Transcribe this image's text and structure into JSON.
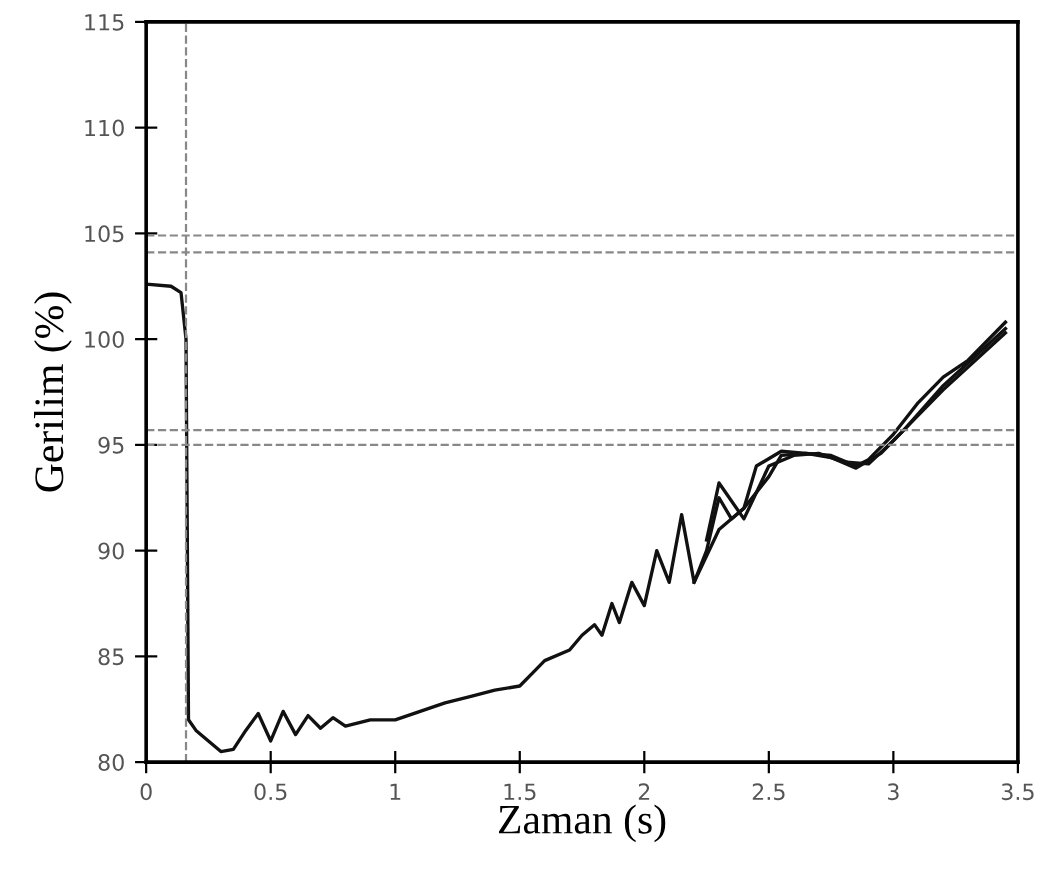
{
  "chart_data": {
    "type": "line",
    "xlabel": "Zaman (s)",
    "ylabel": "Gerilim (%)",
    "xlim": [
      0,
      3.5
    ],
    "ylim": [
      80,
      115
    ],
    "xticks": [
      0,
      0.5,
      1,
      1.5,
      2,
      2.5,
      3,
      3.5
    ],
    "yticks": [
      80,
      85,
      90,
      95,
      100,
      105,
      110,
      115
    ],
    "grid": false,
    "marker": "none",
    "line_style": "solid",
    "series": [
      {
        "color": "#111111",
        "x": [
          0,
          0.1,
          0.14,
          0.16,
          0.17,
          0.2,
          0.25,
          0.3,
          0.35,
          0.4,
          0.45,
          0.5,
          0.55,
          0.6,
          0.65,
          0.7,
          0.75,
          0.8,
          0.9,
          1.0,
          1.1,
          1.2,
          1.3,
          1.4,
          1.5,
          1.55,
          1.6,
          1.7,
          1.75,
          1.8,
          1.83,
          1.87,
          1.9,
          1.95,
          2.0,
          2.05,
          2.1,
          2.15,
          2.2,
          2.25,
          2.3,
          2.35,
          2.4,
          2.5,
          2.55,
          2.65,
          2.75,
          2.85,
          2.9,
          3.0,
          3.1,
          3.2,
          3.3,
          3.45
        ],
        "values": [
          102.6,
          102.5,
          102.2,
          100,
          82,
          81.5,
          81,
          80.5,
          80.6,
          81.5,
          82.3,
          81,
          82.4,
          81.3,
          82.2,
          81.6,
          82.1,
          81.7,
          82,
          82,
          82.4,
          82.8,
          83.1,
          83.4,
          83.6,
          84.2,
          84.8,
          85.3,
          86,
          86.5,
          86,
          87.5,
          86.6,
          88.5,
          87.4,
          90,
          88.5,
          91.7,
          88.5,
          90,
          92.5,
          91.5,
          92,
          93.5,
          94.5,
          94.6,
          94.5,
          94,
          94.3,
          95.5,
          97,
          98.2,
          99,
          100.8
        ]
      },
      {
        "color": "#111111",
        "x": [
          2.2,
          2.3,
          2.4,
          2.45,
          2.55,
          2.65,
          2.75,
          2.85,
          2.95,
          3.05,
          3.2,
          3.45
        ],
        "values": [
          88.5,
          91,
          92,
          94,
          94.7,
          94.6,
          94.4,
          93.9,
          94.6,
          95.8,
          97.8,
          100.5
        ]
      },
      {
        "color": "#111111",
        "x": [
          2.25,
          2.3,
          2.4,
          2.5,
          2.6,
          2.7,
          2.8,
          2.9,
          3.0,
          3.2,
          3.45
        ],
        "values": [
          90.5,
          93.2,
          91.5,
          94,
          94.5,
          94.6,
          94.2,
          94.1,
          95.2,
          97.6,
          100.3
        ]
      }
    ],
    "ref_lines": [
      {
        "axis": "y",
        "value": 104.9,
        "color": "#888888",
        "line_style": "dashed"
      },
      {
        "axis": "y",
        "value": 104.1,
        "color": "#888888",
        "line_style": "dashed"
      },
      {
        "axis": "y",
        "value": 95.7,
        "color": "#888888",
        "line_style": "dashed"
      },
      {
        "axis": "y",
        "value": 95.0,
        "color": "#888888",
        "line_style": "dashed"
      },
      {
        "axis": "x",
        "value": 0.16,
        "color": "#888888",
        "line_style": "dashed"
      }
    ]
  }
}
